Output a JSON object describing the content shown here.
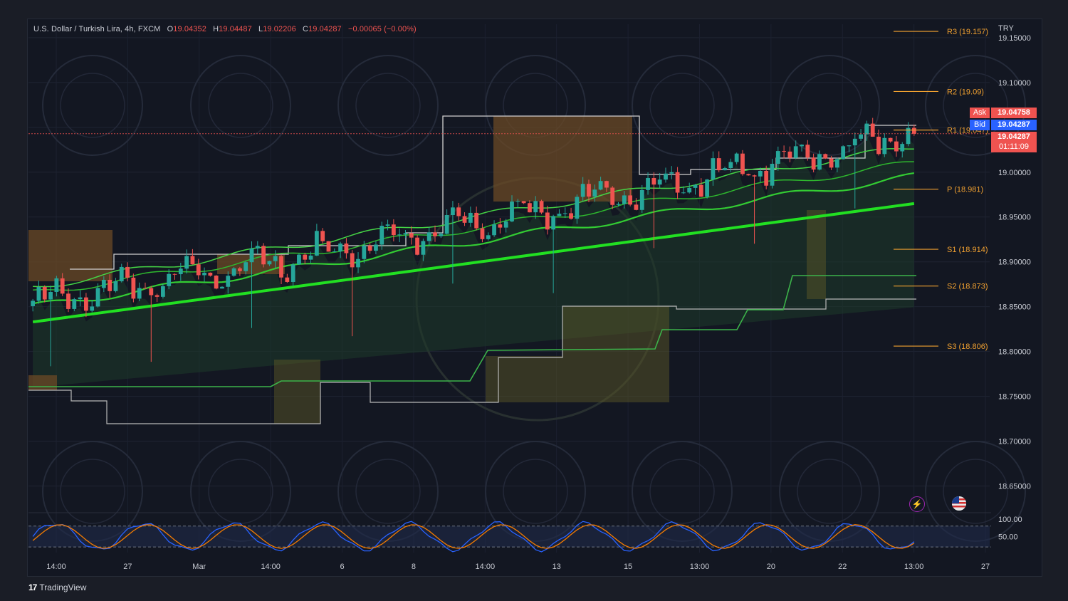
{
  "legend": {
    "symbol": "U.S. Dollar / Turkish Lira, 4h, FXCM",
    "open_label": "O",
    "open": "19.04352",
    "high_label": "H",
    "high": "19.04487",
    "low_label": "L",
    "low": "19.02206",
    "close_label": "C",
    "close": "19.04287",
    "change": "−0.00065 (−0.00%)"
  },
  "currency": "TRY",
  "quotes": {
    "ask_label": "Ask",
    "ask": "19.04758",
    "bid_label": "Bid",
    "bid": "19.04287",
    "last": "19.04287",
    "countdown": "01:11:09"
  },
  "brand": {
    "logo": "17",
    "name": "TradingView"
  },
  "icons": [
    "lightning-icon",
    "us-flag-icon"
  ],
  "colors": {
    "background": "#131722",
    "bull": "#26a69a",
    "bear": "#ef5350",
    "ema_green": "#00e600",
    "pivot_line": "#f0a030",
    "ask": "#ef5350",
    "bid": "#2962ff"
  },
  "chart_data": {
    "type": "candlestick",
    "price_axis": {
      "ticks": [
        19.15,
        19.1,
        19.05,
        19.0,
        18.95,
        18.9,
        18.85,
        18.8,
        18.75,
        18.7,
        18.65
      ],
      "tick_labels": [
        "19.15000",
        "19.10000",
        "19.05000",
        "19.00000",
        "18.95000",
        "18.90000",
        "18.85000",
        "18.80000",
        "18.75000",
        "18.70000",
        "18.65000"
      ],
      "ylim": [
        18.625,
        19.165
      ]
    },
    "time_axis": {
      "labels": [
        "14:00",
        "27",
        "Mar",
        "14:00",
        "6",
        "8",
        "14:00",
        "13",
        "15",
        "13:00",
        "20",
        "22",
        "13:00",
        "27"
      ]
    },
    "pivot_levels": [
      {
        "name": "R3",
        "value": 19.157,
        "label": "R3 (19.157)"
      },
      {
        "name": "R2",
        "value": 19.09,
        "label": "R2 (19.09)"
      },
      {
        "name": "R1",
        "value": 19.047,
        "label": "R1 (19.047)"
      },
      {
        "name": "P",
        "value": 18.981,
        "label": "P (18.981)"
      },
      {
        "name": "S1",
        "value": 18.914,
        "label": "S1 (18.914)"
      },
      {
        "name": "S2",
        "value": 18.873,
        "label": "S2 (18.873)"
      },
      {
        "name": "S3",
        "value": 18.806,
        "label": "S3 (18.806)"
      }
    ],
    "candles_first_close": 18.855,
    "candles_last_close": 19.04287,
    "ema_series": [
      {
        "start": 18.833,
        "end": 18.965
      },
      {
        "start": 18.85,
        "end": 18.995
      },
      {
        "start": 18.865,
        "end": 19.01
      },
      {
        "start": 18.872,
        "end": 19.028
      }
    ],
    "oscillator": {
      "tick_labels": [
        "100.00",
        "50.00"
      ],
      "ylim": [
        0,
        110
      ],
      "band": [
        20,
        80
      ]
    }
  }
}
